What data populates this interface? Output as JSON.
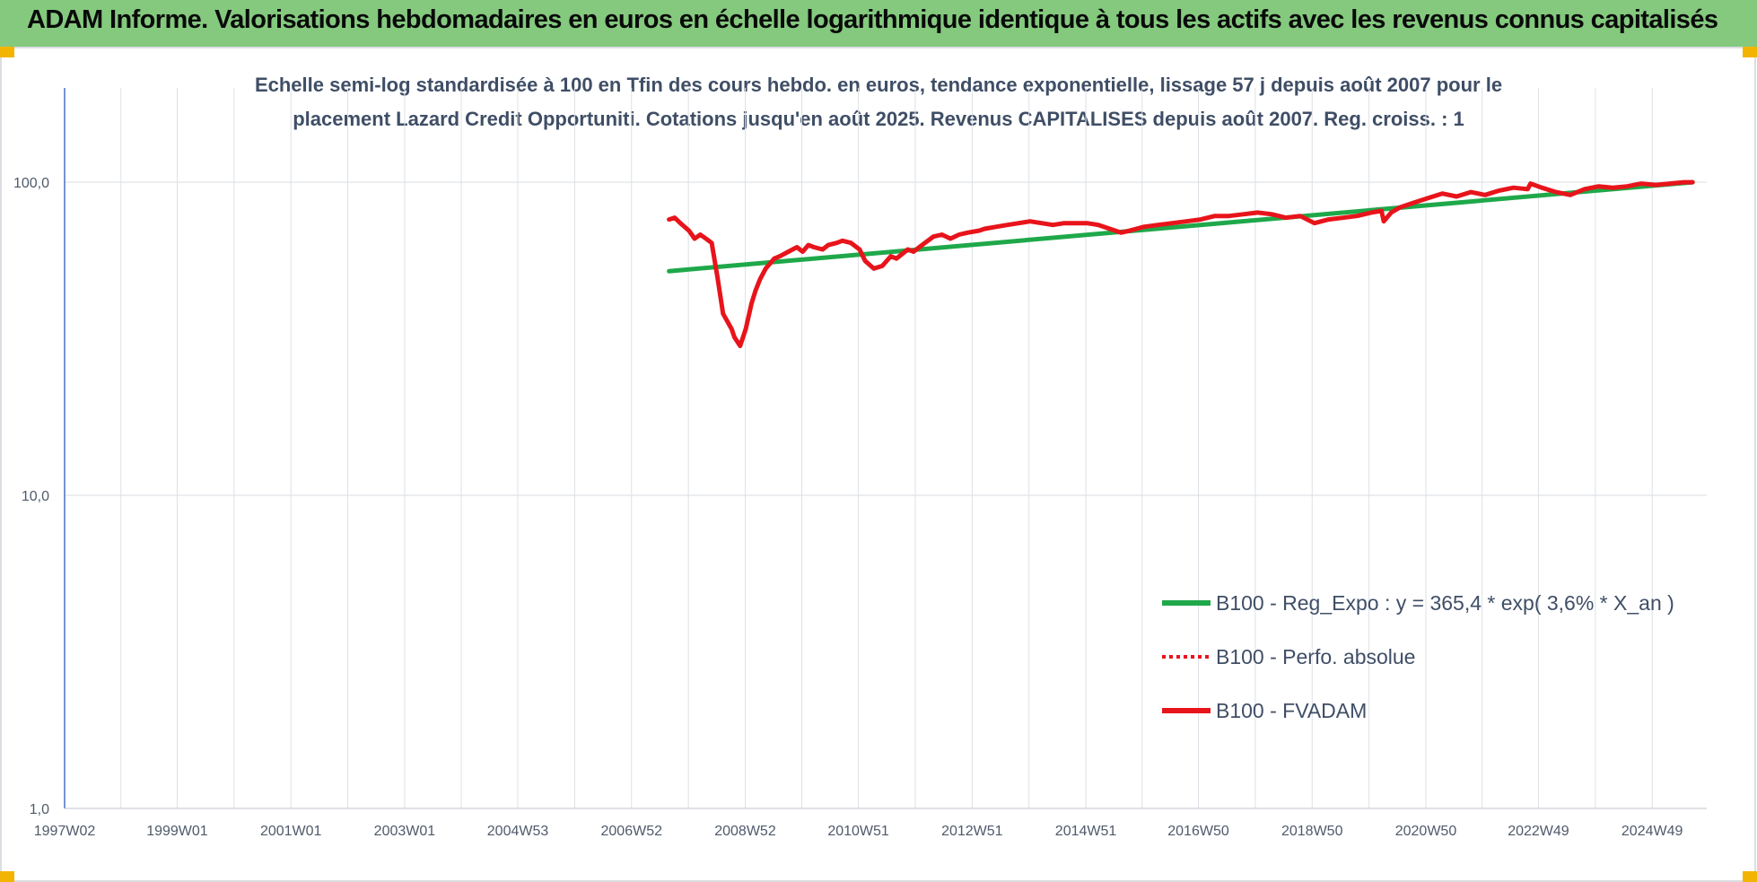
{
  "banner": {
    "title": "ADAM Informe. Valorisations hebdomadaires en euros en échelle logarithmique identique à tous les actifs avec les revenus connus capitalisés",
    "color": "#84c97e",
    "corner_color": "#f2b400"
  },
  "chart_data": {
    "type": "line",
    "title_line1": "Echelle semi-log standardisée à 100 en Tfin des cours hebdo. en euros, tendance exponentielle, lissage 57 j depuis août 2007 pour le",
    "title_line2": "placement Lazard Credit Opportuniti. Cotations jusqu'en août 2025. Revenus CAPITALISES depuis août 2007. Reg. croiss. : 1",
    "y_scale": "log",
    "ylim": [
      1,
      200
    ],
    "y_ticks": [
      1,
      10,
      100
    ],
    "y_tick_labels": [
      "1,0",
      "10,0",
      "100,0"
    ],
    "xlim": [
      1997.02,
      2025.9
    ],
    "x_ticks": [
      1997.02,
      1999.0,
      2001.0,
      2003.0,
      2004.99,
      2006.99,
      2008.99,
      2010.98,
      2012.98,
      2014.98,
      2016.96,
      2018.96,
      2020.96,
      2022.94,
      2024.94
    ],
    "x_tick_labels": [
      "1997W02",
      "1999W01",
      "2001W01",
      "2003W01",
      "2004W53",
      "2006W52",
      "2008W52",
      "2010W51",
      "2012W51",
      "2014W51",
      "2016W50",
      "2018W50",
      "2020W50",
      "2022W49",
      "2024W49"
    ],
    "grid": true,
    "legend_position": "bottom-right",
    "series": [
      {
        "name": "B100 - Reg_Expo : y = 365,4 * exp( 3,6% *  X_an )",
        "color": "#1fa84a",
        "style": "solid",
        "x": [
          2007.65,
          2025.65
        ],
        "y": [
          52,
          100
        ]
      },
      {
        "name": "B100 - Perfo. absolue",
        "color": "#e8141b",
        "style": "dotted",
        "x": [],
        "y": []
      },
      {
        "name": "B100 - FVADAM",
        "color": "#e8141b",
        "style": "solid",
        "x": [
          2007.65,
          2007.75,
          2007.85,
          2008.0,
          2008.1,
          2008.2,
          2008.3,
          2008.4,
          2008.5,
          2008.6,
          2008.75,
          2008.8,
          2008.9,
          2009.0,
          2009.1,
          2009.17,
          2009.25,
          2009.35,
          2009.5,
          2009.6,
          2009.75,
          2009.9,
          2010.0,
          2010.1,
          2010.2,
          2010.35,
          2010.45,
          2010.6,
          2010.7,
          2010.85,
          2011.0,
          2011.1,
          2011.25,
          2011.4,
          2011.55,
          2011.65,
          2011.75,
          2011.85,
          2011.95,
          2012.05,
          2012.15,
          2012.3,
          2012.45,
          2012.6,
          2012.75,
          2012.9,
          2013.1,
          2013.2,
          2013.4,
          2013.6,
          2013.8,
          2014.0,
          2014.2,
          2014.4,
          2014.6,
          2014.8,
          2015.0,
          2015.2,
          2015.4,
          2015.6,
          2015.75,
          2016.0,
          2016.25,
          2016.5,
          2016.75,
          2017.0,
          2017.25,
          2017.5,
          2017.75,
          2018.0,
          2018.25,
          2018.5,
          2018.75,
          2019.0,
          2019.25,
          2019.5,
          2019.75,
          2020.0,
          2020.18,
          2020.22,
          2020.35,
          2020.5,
          2020.75,
          2021.0,
          2021.25,
          2021.5,
          2021.75,
          2022.0,
          2022.25,
          2022.5,
          2022.75,
          2022.8,
          2023.0,
          2023.25,
          2023.5,
          2023.75,
          2024.0,
          2024.25,
          2024.5,
          2024.75,
          2025.0,
          2025.25,
          2025.5,
          2025.65
        ],
        "y": [
          76,
          77,
          74,
          70,
          66,
          68,
          66,
          64,
          50,
          38,
          34,
          32,
          30,
          34,
          41,
          45,
          49,
          53,
          57,
          58,
          60,
          62,
          60,
          63,
          62,
          61,
          63,
          64,
          65,
          64,
          61,
          56,
          53,
          54,
          58,
          57,
          59,
          61,
          60,
          62,
          64,
          67,
          68,
          66,
          68,
          69,
          70,
          71,
          72,
          73,
          74,
          75,
          74,
          73,
          74,
          74,
          74,
          73,
          71,
          69,
          70,
          72,
          73,
          74,
          75,
          76,
          78,
          78,
          79,
          80,
          79,
          77,
          78,
          74,
          76,
          77,
          78,
          80,
          81,
          75,
          80,
          83,
          86,
          89,
          92,
          90,
          93,
          91,
          94,
          96,
          95,
          99,
          96,
          93,
          91,
          95,
          97,
          96,
          97,
          99,
          98,
          99,
          100,
          100
        ]
      }
    ]
  }
}
